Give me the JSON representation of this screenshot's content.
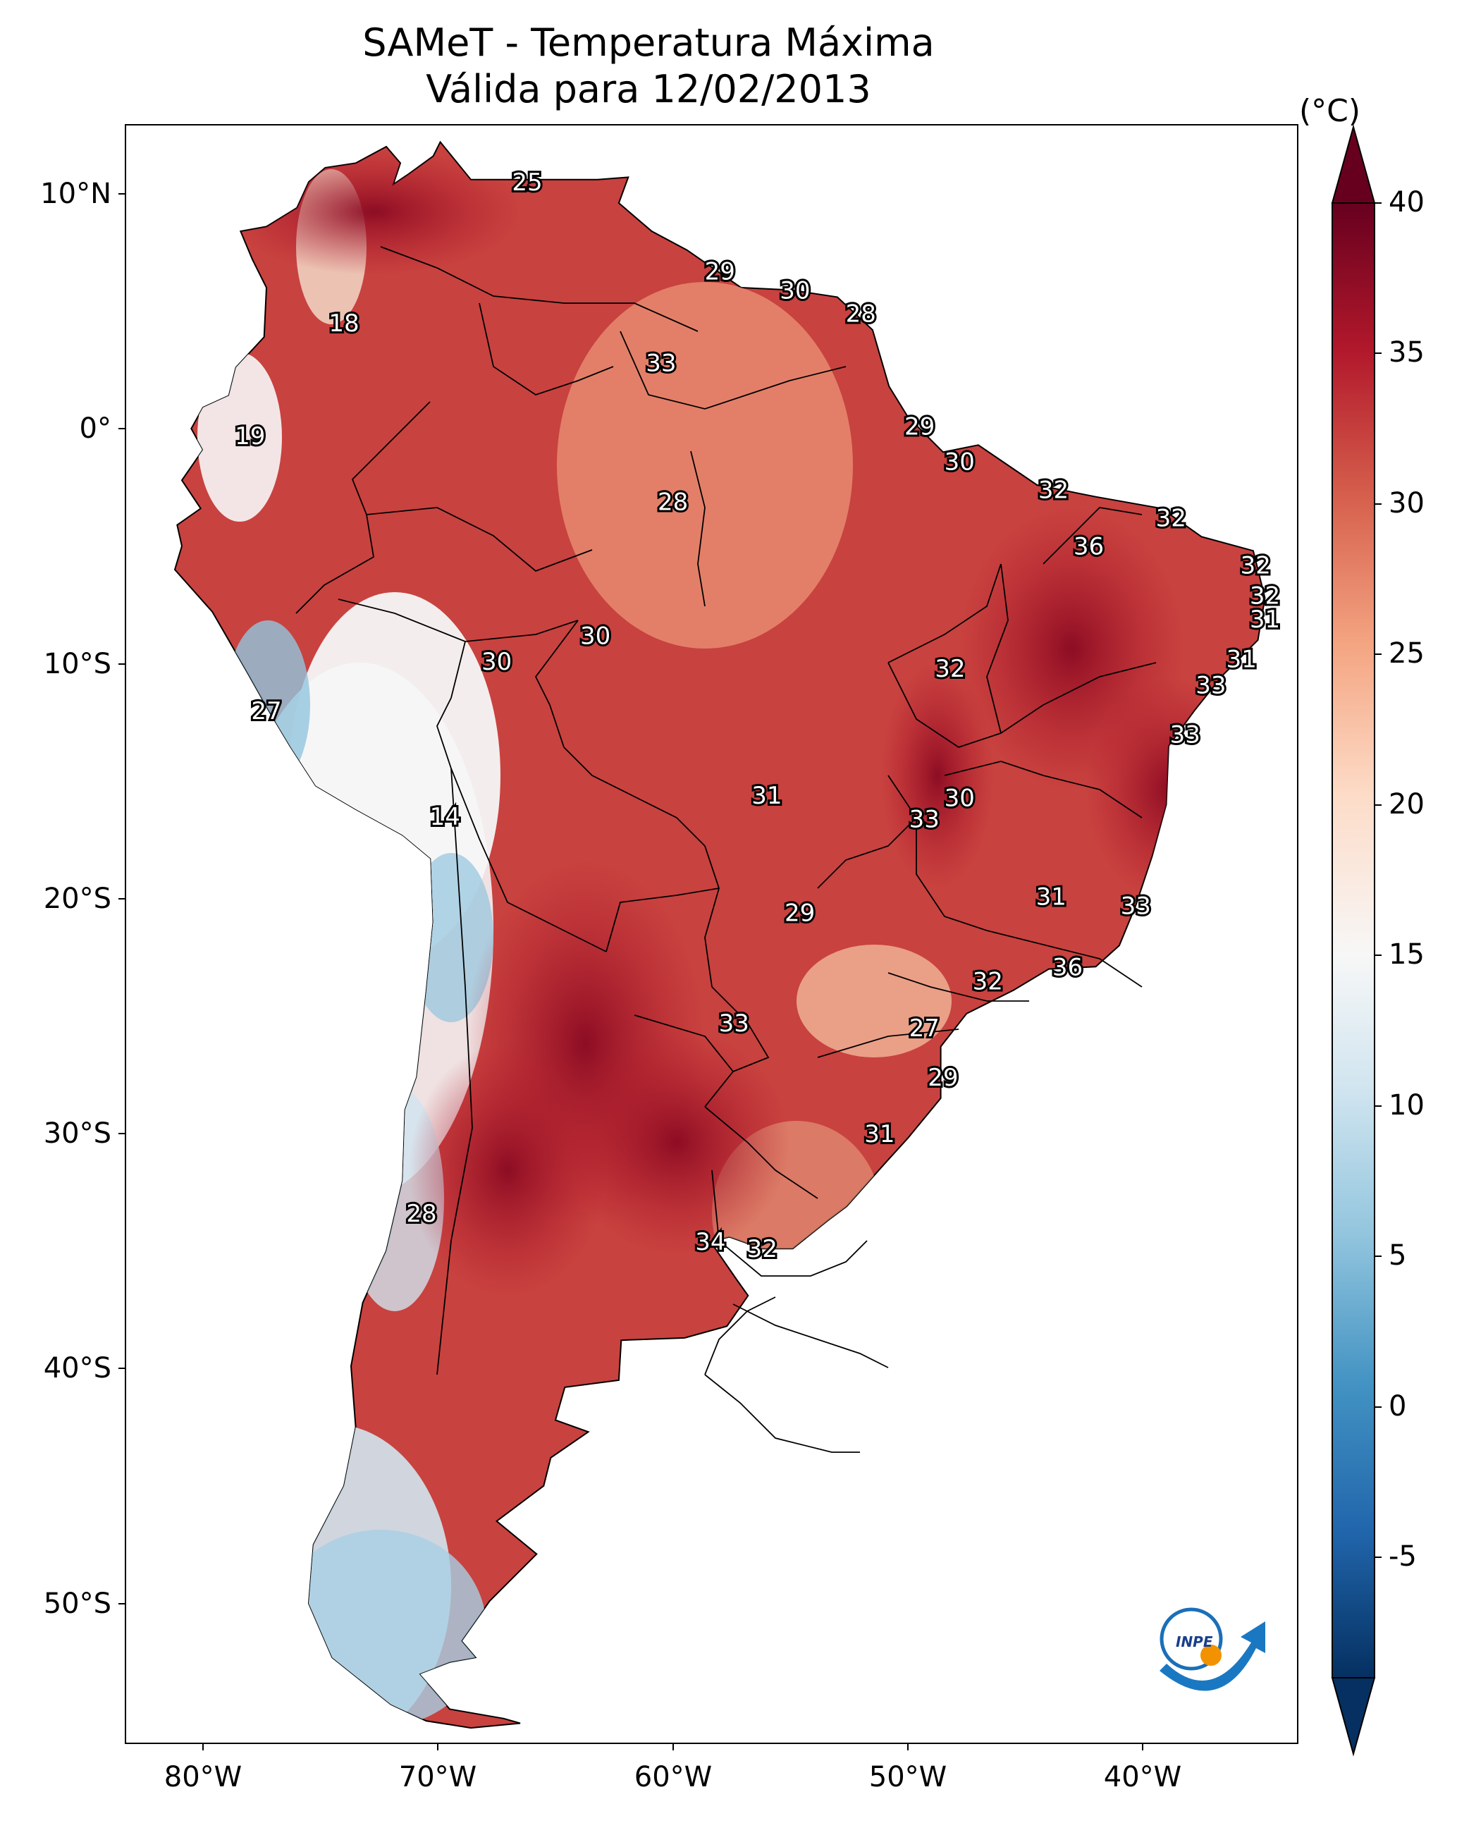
{
  "title_line1": "SAMeT - Temperatura Máxima",
  "title_line2": "Válida para 12/02/2013",
  "colorbar": {
    "unit": "(°C)",
    "ticks": [
      "40",
      "35",
      "30",
      "25",
      "20",
      "15",
      "10",
      "5",
      "0",
      "-5"
    ],
    "min": -7,
    "max": 42
  },
  "axes": {
    "lat_labels": [
      "10°N",
      "0°",
      "10°S",
      "20°S",
      "30°S",
      "40°S",
      "50°S"
    ],
    "lon_labels": [
      "80°W",
      "70°W",
      "60°W",
      "50°W",
      "40°W"
    ]
  },
  "station_labels": [
    {
      "value": "25",
      "lon": -66.2,
      "lat": 10.5
    },
    {
      "value": "18",
      "lon": -74.0,
      "lat": 4.5
    },
    {
      "value": "19",
      "lon": -78.0,
      "lat": -0.3
    },
    {
      "value": "29",
      "lon": -58.0,
      "lat": 6.7
    },
    {
      "value": "30",
      "lon": -54.8,
      "lat": 5.9
    },
    {
      "value": "28",
      "lon": -52.0,
      "lat": 4.9
    },
    {
      "value": "33",
      "lon": -60.5,
      "lat": 2.8
    },
    {
      "value": "28",
      "lon": -60.0,
      "lat": -3.1
    },
    {
      "value": "29",
      "lon": -49.5,
      "lat": 0.1
    },
    {
      "value": "30",
      "lon": -47.8,
      "lat": -1.4
    },
    {
      "value": "32",
      "lon": -43.8,
      "lat": -2.6
    },
    {
      "value": "32",
      "lon": -38.8,
      "lat": -3.8
    },
    {
      "value": "36",
      "lon": -42.3,
      "lat": -5.0
    },
    {
      "value": "32",
      "lon": -35.2,
      "lat": -5.8
    },
    {
      "value": "32",
      "lon": -34.8,
      "lat": -7.1
    },
    {
      "value": "31",
      "lon": -34.8,
      "lat": -8.1
    },
    {
      "value": "31",
      "lon": -35.8,
      "lat": -9.8
    },
    {
      "value": "33",
      "lon": -37.1,
      "lat": -10.9
    },
    {
      "value": "33",
      "lon": -38.2,
      "lat": -13.0
    },
    {
      "value": "30",
      "lon": -63.3,
      "lat": -8.8
    },
    {
      "value": "30",
      "lon": -67.5,
      "lat": -9.9
    },
    {
      "value": "32",
      "lon": -48.2,
      "lat": -10.2
    },
    {
      "value": "27",
      "lon": -77.3,
      "lat": -12.0
    },
    {
      "value": "31",
      "lon": -56.0,
      "lat": -15.6
    },
    {
      "value": "30",
      "lon": -47.8,
      "lat": -15.7
    },
    {
      "value": "33",
      "lon": -49.3,
      "lat": -16.6
    },
    {
      "value": "14",
      "lon": -69.7,
      "lat": -16.5
    },
    {
      "value": "29",
      "lon": -54.6,
      "lat": -20.6
    },
    {
      "value": "31",
      "lon": -43.9,
      "lat": -19.9
    },
    {
      "value": "33",
      "lon": -40.3,
      "lat": -20.3
    },
    {
      "value": "36",
      "lon": -43.2,
      "lat": -22.9
    },
    {
      "value": "32",
      "lon": -46.6,
      "lat": -23.5
    },
    {
      "value": "33",
      "lon": -57.4,
      "lat": -25.3
    },
    {
      "value": "27",
      "lon": -49.3,
      "lat": -25.5
    },
    {
      "value": "29",
      "lon": -48.5,
      "lat": -27.6
    },
    {
      "value": "31",
      "lon": -51.2,
      "lat": -30.0
    },
    {
      "value": "28",
      "lon": -70.7,
      "lat": -33.4
    },
    {
      "value": "34",
      "lon": -58.4,
      "lat": -34.6
    },
    {
      "value": "32",
      "lon": -56.2,
      "lat": -34.9
    }
  ]
}
